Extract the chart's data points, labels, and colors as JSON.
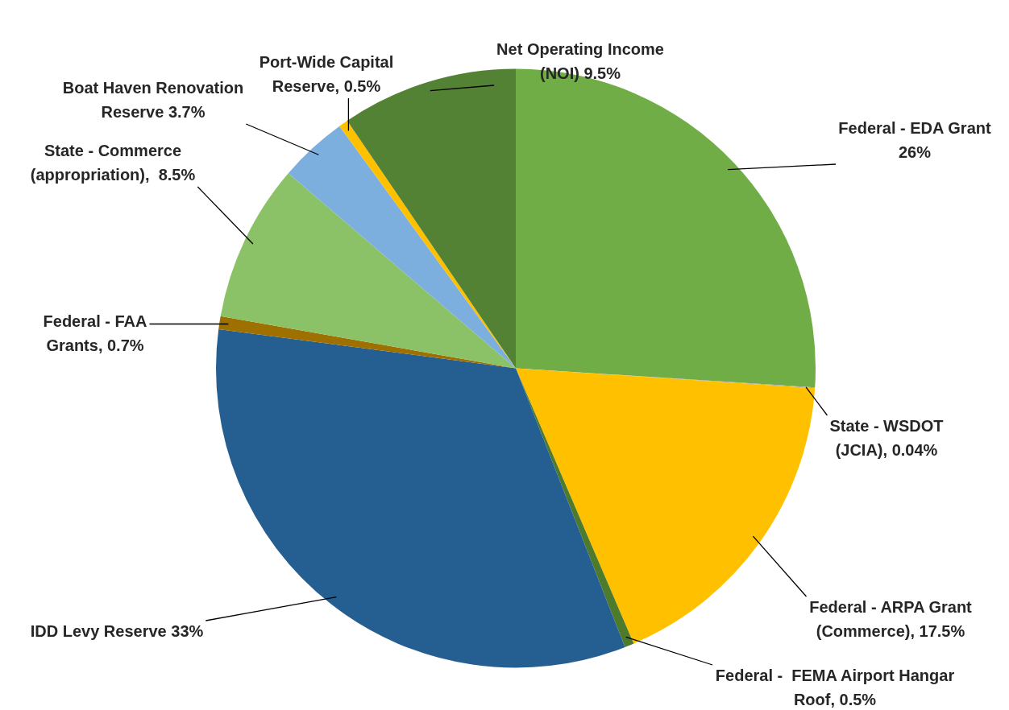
{
  "chart_data": {
    "type": "pie",
    "categories": [
      "Federal - EDA Grant\n26%",
      "State - WSDOT\n(JCIA), 0.04%",
      "Federal - ARPA Grant\n(Commerce), 17.5%",
      "Federal -  FEMA Airport Hangar\nRoof, 0.5%",
      "IDD Levy Reserve 33%",
      "Federal - FAA\nGrants, 0.7%",
      "State - Commerce\n(appropriation),  8.5%",
      "Boat Haven Renovation\nReserve 3.7%",
      "Port-Wide Capital\nReserve, 0.5%",
      "Net Operating Income\n(NOI) 9.5%"
    ],
    "values": [
      26,
      0.04,
      17.5,
      0.5,
      33,
      0.7,
      8.5,
      3.7,
      0.5,
      9.5
    ],
    "colors": [
      "#70ad47",
      "#a5a5a5",
      "#ffc000",
      "#4e7a2c",
      "#255e91",
      "#9e7000",
      "#8cc267",
      "#7cafdd",
      "#ffc000",
      "#548235"
    ],
    "legend": false
  }
}
